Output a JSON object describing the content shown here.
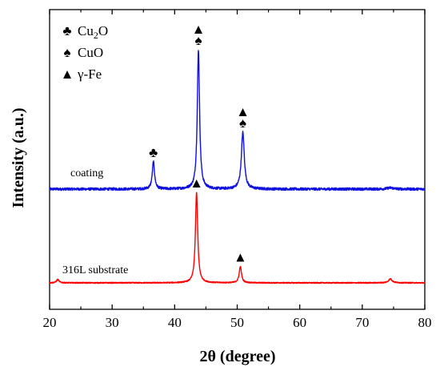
{
  "chart_data": {
    "type": "line",
    "xlabel": "2θ (degree)",
    "ylabel": "Intensity (a.u.)",
    "xlim": [
      20,
      80
    ],
    "xticks": [
      20,
      30,
      40,
      50,
      60,
      70,
      80
    ],
    "xtick_labels": [
      "20",
      "30",
      "40",
      "50",
      "60",
      "70",
      "80"
    ],
    "grid": false,
    "legend_position": "top-left",
    "legend": [
      {
        "symbol": "club",
        "glyph": "♣",
        "label": "Cu",
        "sub": "2",
        "label_tail": "O"
      },
      {
        "symbol": "spade",
        "glyph": "♠",
        "label": "CuO",
        "sub": "",
        "label_tail": ""
      },
      {
        "symbol": "triangle",
        "glyph": "▲",
        "label": "γ-Fe",
        "sub": "",
        "label_tail": ""
      }
    ],
    "series": [
      {
        "name": "coating",
        "color": "#1010e0",
        "baseline": 2.6,
        "noise": 0.06,
        "peaks": [
          {
            "x": 36.6,
            "height": 1.25,
            "width": 0.22
          },
          {
            "x": 43.8,
            "height": 6.4,
            "width": 0.22
          },
          {
            "x": 50.9,
            "height": 2.6,
            "width": 0.28
          },
          {
            "x": 74.5,
            "height": 0.06,
            "width": 0.6
          }
        ]
      },
      {
        "name": "316L substrate",
        "color": "#ff0000",
        "baseline": 0.0,
        "noise": 0.025,
        "peaks": [
          {
            "x": 21.3,
            "height": 0.15,
            "width": 0.25
          },
          {
            "x": 43.5,
            "height": 4.15,
            "width": 0.22
          },
          {
            "x": 50.5,
            "height": 0.75,
            "width": 0.22
          },
          {
            "x": 74.5,
            "height": 0.18,
            "width": 0.35
          }
        ]
      }
    ],
    "peak_markers": [
      {
        "x": 36.6,
        "series": "coating",
        "glyphs": [
          "club"
        ]
      },
      {
        "x": 43.8,
        "series": "coating",
        "glyphs": [
          "spade",
          "triangle"
        ]
      },
      {
        "x": 50.9,
        "series": "coating",
        "glyphs": [
          "spade",
          "triangle"
        ]
      },
      {
        "x": 43.5,
        "series": "316L substrate",
        "glyphs": [
          "triangle"
        ]
      },
      {
        "x": 50.5,
        "series": "316L substrate",
        "glyphs": [
          "triangle"
        ]
      }
    ]
  }
}
